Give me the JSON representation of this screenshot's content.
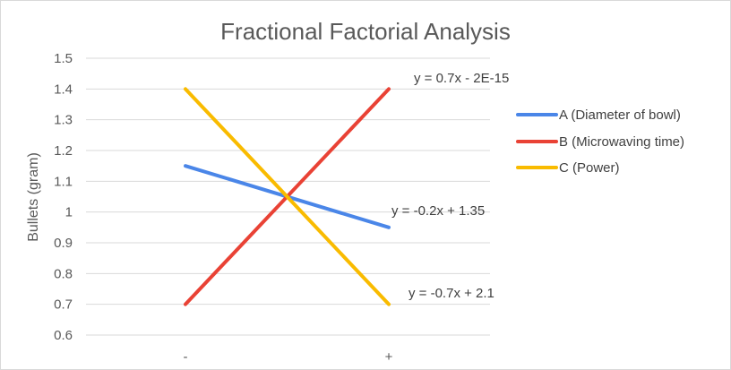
{
  "chart_data": {
    "type": "line",
    "title": "Fractional Factorial Analysis",
    "xlabel": "",
    "ylabel": "Bullets (gram)",
    "categories": [
      "-",
      "+"
    ],
    "ylim": [
      0.6,
      1.5
    ],
    "yticks": [
      "0.6",
      "0.7",
      "0.8",
      "0.9",
      "1",
      "1.1",
      "1.2",
      "1.3",
      "1.4",
      "1.5"
    ],
    "grid": true,
    "legend_position": "right",
    "series": [
      {
        "name": "A (Diameter of bowl)",
        "values": [
          1.15,
          0.95
        ],
        "color": "#4a86e8",
        "trendline": "y = -0.2x + 1.35"
      },
      {
        "name": "B (Microwaving time)",
        "values": [
          0.7,
          1.4
        ],
        "color": "#e94235",
        "trendline": "y = 0.7x - 2E-15"
      },
      {
        "name": "C (Power)",
        "values": [
          1.4,
          0.7
        ],
        "color": "#f9bb00",
        "trendline": "y = -0.7x + 2.1"
      }
    ]
  }
}
